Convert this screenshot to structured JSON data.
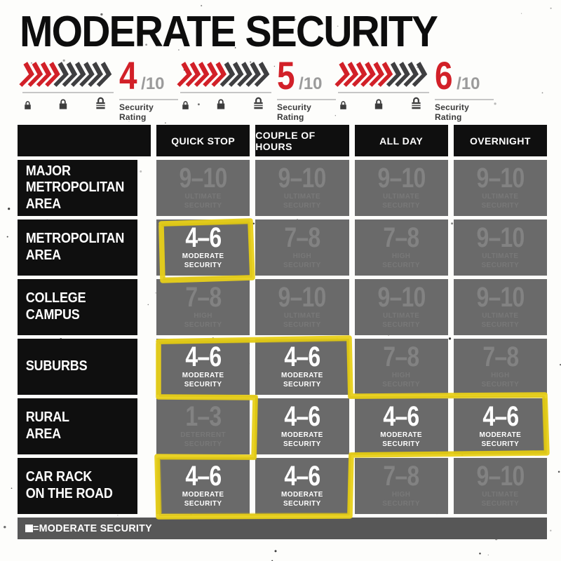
{
  "title": "MODERATE SECURITY",
  "colors": {
    "accent_red": "#d22028",
    "chevron_dark": "#3f3f41",
    "cell_gray": "#6a6a6a",
    "header_black": "#0f0f0f",
    "legend_gray": "#575757",
    "marker_yellow": "#e8d019",
    "muted_text": "#828282",
    "active_text": "#ffffff"
  },
  "ratings": [
    {
      "score": "4",
      "denominator": "/10",
      "label": "Security Rating",
      "filled": 4,
      "total": 10
    },
    {
      "score": "5",
      "denominator": "/10",
      "label": "Security Rating",
      "filled": 5,
      "total": 10
    },
    {
      "score": "6",
      "denominator": "/10",
      "label": "Security Rating",
      "filled": 6,
      "total": 10
    }
  ],
  "table": {
    "col_headers": [
      "QUICK STOP",
      "COUPLE OF HOURS",
      "ALL DAY",
      "OVERNIGHT"
    ],
    "rows": [
      {
        "label": "MAJOR\nMETROPOLITAN\nAREA",
        "cells": [
          {
            "range": "9–10",
            "level": "ULTIMATE\nSECURITY",
            "active": false
          },
          {
            "range": "9–10",
            "level": "ULTIMATE\nSECURITY",
            "active": false
          },
          {
            "range": "9–10",
            "level": "ULTIMATE\nSECURITY",
            "active": false
          },
          {
            "range": "9–10",
            "level": "ULTIMATE\nSECURITY",
            "active": false
          }
        ]
      },
      {
        "label": "METROPOLITAN\nAREA",
        "cells": [
          {
            "range": "4–6",
            "level": "MODERATE\nSECURITY",
            "active": true
          },
          {
            "range": "7–8",
            "level": "HIGH\nSECURITY",
            "active": false
          },
          {
            "range": "7–8",
            "level": "HIGH\nSECURITY",
            "active": false
          },
          {
            "range": "9–10",
            "level": "ULTIMATE\nSECURITY",
            "active": false
          }
        ]
      },
      {
        "label": "COLLEGE\nCAMPUS",
        "cells": [
          {
            "range": "7–8",
            "level": "HIGH\nSECURITY",
            "active": false
          },
          {
            "range": "9–10",
            "level": "ULTIMATE\nSECURITY",
            "active": false
          },
          {
            "range": "9–10",
            "level": "ULTIMATE\nSECURITY",
            "active": false
          },
          {
            "range": "9–10",
            "level": "ULTIMATE\nSECURITY",
            "active": false
          }
        ]
      },
      {
        "label": "SUBURBS",
        "cells": [
          {
            "range": "4–6",
            "level": "MODERATE\nSECURITY",
            "active": true
          },
          {
            "range": "4–6",
            "level": "MODERATE\nSECURITY",
            "active": true
          },
          {
            "range": "7–8",
            "level": "HIGH\nSECURITY",
            "active": false
          },
          {
            "range": "7–8",
            "level": "HIGH\nSECURITY",
            "active": false
          }
        ]
      },
      {
        "label": "RURAL\nAREA",
        "cells": [
          {
            "range": "1–3",
            "level": "DETERRENT\nSECURITY",
            "active": false
          },
          {
            "range": "4–6",
            "level": "MODERATE\nSECURITY",
            "active": true
          },
          {
            "range": "4–6",
            "level": "MODERATE\nSECURITY",
            "active": true
          },
          {
            "range": "4–6",
            "level": "MODERATE\nSECURITY",
            "active": true
          }
        ]
      },
      {
        "label": "CAR RACK\nON THE ROAD",
        "cells": [
          {
            "range": "4–6",
            "level": "MODERATE\nSECURITY",
            "active": true
          },
          {
            "range": "4–6",
            "level": "MODERATE\nSECURITY",
            "active": true
          },
          {
            "range": "7–8",
            "level": "HIGH\nSECURITY",
            "active": false
          },
          {
            "range": "9–10",
            "level": "ULTIMATE\nSECURITY",
            "active": false
          }
        ]
      }
    ]
  },
  "legend": {
    "text": "=MODERATE SECURITY"
  },
  "chart_data": {
    "type": "table",
    "title": "MODERATE SECURITY",
    "security_rating_scale": [
      "4/10",
      "5/10",
      "6/10"
    ],
    "columns": [
      "QUICK STOP",
      "COUPLE OF HOURS",
      "ALL DAY",
      "OVERNIGHT"
    ],
    "row_labels": [
      "MAJOR METROPOLITAN AREA",
      "METROPOLITAN AREA",
      "COLLEGE CAMPUS",
      "SUBURBS",
      "RURAL AREA",
      "CAR RACK ON THE ROAD"
    ],
    "cells": [
      [
        "9–10 ULTIMATE SECURITY",
        "9–10 ULTIMATE SECURITY",
        "9–10 ULTIMATE SECURITY",
        "9–10 ULTIMATE SECURITY"
      ],
      [
        "4–6 MODERATE SECURITY",
        "7–8 HIGH SECURITY",
        "7–8 HIGH SECURITY",
        "9–10 ULTIMATE SECURITY"
      ],
      [
        "7–8 HIGH SECURITY",
        "9–10 ULTIMATE SECURITY",
        "9–10 ULTIMATE SECURITY",
        "9–10 ULTIMATE SECURITY"
      ],
      [
        "4–6 MODERATE SECURITY",
        "4–6 MODERATE SECURITY",
        "7–8 HIGH SECURITY",
        "7–8 HIGH SECURITY"
      ],
      [
        "1–3 DETERRENT SECURITY",
        "4–6 MODERATE SECURITY",
        "4–6 MODERATE SECURITY",
        "4–6 MODERATE SECURITY"
      ],
      [
        "4–6 MODERATE SECURITY",
        "4–6 MODERATE SECURITY",
        "7–8 HIGH SECURITY",
        "9–10 ULTIMATE SECURITY"
      ]
    ],
    "highlight_note": "Cells rated 4–6 MODERATE SECURITY are circled with a yellow hand-drawn marker",
    "legend": "white square = MODERATE SECURITY"
  }
}
